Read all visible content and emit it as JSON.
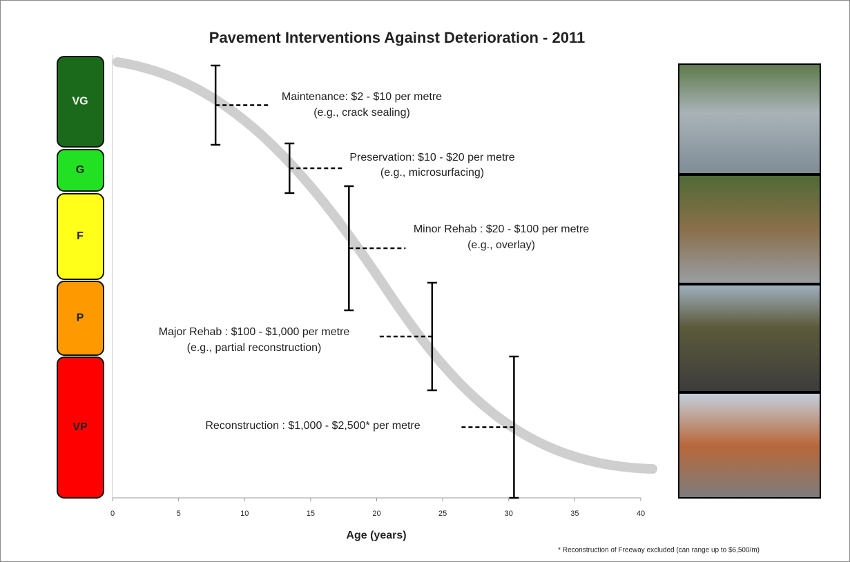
{
  "chart_data": {
    "type": "intervals",
    "title": "Pavement Interventions Against Deterioration - 2011",
    "xlabel": "Age (years)",
    "xlim": [
      0,
      40
    ],
    "xticks": [
      0,
      5,
      10,
      15,
      20,
      25,
      30,
      35,
      40
    ],
    "conditions": [
      {
        "label": "VG",
        "color": "#1b6a1b"
      },
      {
        "label": "G",
        "color": "#22e022"
      },
      {
        "label": "F",
        "color": "#ffff1a"
      },
      {
        "label": "P",
        "color": "#ff9900"
      },
      {
        "label": "VP",
        "color": "#ff0000"
      }
    ],
    "interventions": [
      {
        "x": 7.8,
        "lines": [
          "Maintenance: $2 - $10 per metre",
          "(e.g., crack sealing)"
        ]
      },
      {
        "x": 13.4,
        "lines": [
          "Preservation: $10 - $20 per metre",
          "(e.g., microsurfacing)"
        ]
      },
      {
        "x": 17.9,
        "lines": [
          "Minor Rehab : $20 - $100 per metre",
          "(e.g., overlay)"
        ]
      },
      {
        "x": 24.2,
        "lines": [
          "Major Rehab : $100 - $1,000 per metre",
          "(e.g., partial reconstruction)"
        ]
      },
      {
        "x": 30.4,
        "lines": [
          "Reconstruction : $1,000 - $2,500* per metre"
        ]
      }
    ],
    "footnote": "* Reconstruction of Freeway excluded (can range up to $6,500/m)"
  }
}
